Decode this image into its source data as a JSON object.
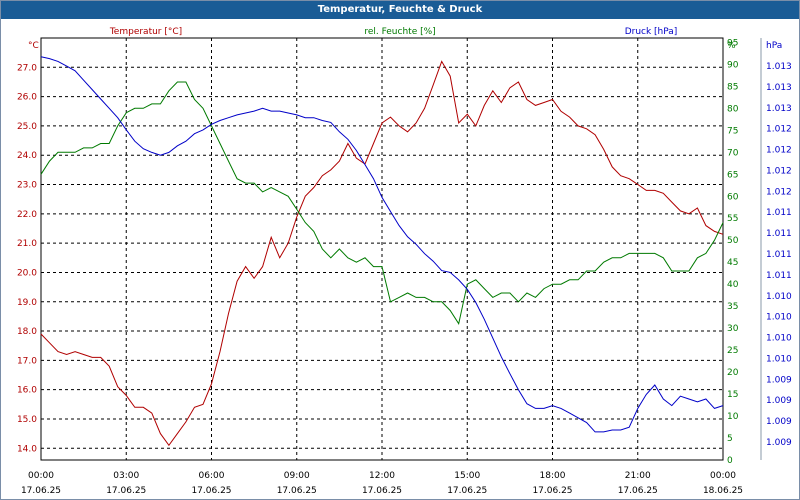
{
  "chart_data": {
    "type": "line",
    "title": "Temperatur, Feuchte & Druck",
    "x_ticks": [
      {
        "time": "00:00",
        "date": "17.06.25"
      },
      {
        "time": "03:00",
        "date": "17.06.25"
      },
      {
        "time": "06:00",
        "date": "17.06.25"
      },
      {
        "time": "09:00",
        "date": "17.06.25"
      },
      {
        "time": "12:00",
        "date": "17.06.25"
      },
      {
        "time": "15:00",
        "date": "17.06.25"
      },
      {
        "time": "18:00",
        "date": "17.06.25"
      },
      {
        "time": "21:00",
        "date": "17.06.25"
      },
      {
        "time": "00:00",
        "date": "18.06.25"
      }
    ],
    "x_range_hours": [
      0,
      24
    ],
    "grid": true,
    "axes": {
      "temperature": {
        "label": "Temperatur [°C]",
        "unit": "°C",
        "range": [
          13.6,
          28.0
        ],
        "ticks": [
          "14.0",
          "15.0",
          "16.0",
          "17.0",
          "18.0",
          "19.0",
          "20.0",
          "21.0",
          "22.0",
          "23.0",
          "24.0",
          "25.0",
          "26.0",
          "27.0"
        ],
        "color": "#b00000"
      },
      "humidity": {
        "label": "rel. Feuchte [%]",
        "unit": "%",
        "range": [
          0,
          96
        ],
        "ticks": [
          "0",
          "5",
          "10",
          "15",
          "20",
          "25",
          "30",
          "35",
          "40",
          "45",
          "50",
          "55",
          "60",
          "65",
          "70",
          "75",
          "80",
          "85",
          "90",
          "95",
          "%"
        ],
        "color": "#007a00"
      },
      "pressure": {
        "label": "Druck [hPa]",
        "unit": "hPa",
        "range": [
          1008.8,
          1013.3
        ],
        "ticks": [
          "1.009",
          "1.009",
          "1.009",
          "1.009",
          "1.010",
          "1.010",
          "1.010",
          "1.010",
          "1.011",
          "1.011",
          "1.011",
          "1.011",
          "1.012",
          "1.012",
          "1.012",
          "1.012",
          "1.013",
          "1.013",
          "1.013"
        ],
        "color": "#0000c8"
      }
    },
    "series": [
      {
        "name": "Temperatur [°C]",
        "color": "#b00000",
        "axis": "temperature",
        "x": [
          0,
          0.3,
          0.6,
          0.9,
          1.2,
          1.5,
          1.8,
          2.1,
          2.4,
          2.7,
          3,
          3.3,
          3.6,
          3.9,
          4.2,
          4.5,
          4.8,
          5.1,
          5.4,
          5.7,
          6,
          6.3,
          6.6,
          6.9,
          7.2,
          7.5,
          7.8,
          8.1,
          8.4,
          8.7,
          9,
          9.3,
          9.6,
          9.9,
          10.2,
          10.5,
          10.8,
          11.1,
          11.4,
          11.7,
          12,
          12.3,
          12.6,
          12.9,
          13.2,
          13.5,
          13.8,
          14.1,
          14.4,
          14.7,
          15,
          15.3,
          15.6,
          15.9,
          16.2,
          16.5,
          16.8,
          17.1,
          17.4,
          17.7,
          18,
          18.3,
          18.6,
          18.9,
          19.2,
          19.5,
          19.8,
          20.1,
          20.4,
          20.7,
          21,
          21.3,
          21.6,
          21.9,
          22.2,
          22.5,
          22.8,
          23.1,
          23.4,
          23.7,
          24
        ],
        "values": [
          17.9,
          17.6,
          17.3,
          17.2,
          17.3,
          17.2,
          17.1,
          17.1,
          16.8,
          16.1,
          15.8,
          15.4,
          15.4,
          15.2,
          14.5,
          14.1,
          14.5,
          14.9,
          15.4,
          15.5,
          16.2,
          17.3,
          18.6,
          19.7,
          20.2,
          19.8,
          20.2,
          21.2,
          20.5,
          21.0,
          21.9,
          22.6,
          22.9,
          23.3,
          23.5,
          23.8,
          24.4,
          23.9,
          23.7,
          24.4,
          25.1,
          25.3,
          25.0,
          24.8,
          25.1,
          25.6,
          26.4,
          27.2,
          26.7,
          25.1,
          25.4,
          25.0,
          25.7,
          26.2,
          25.8,
          26.3,
          26.5,
          25.9,
          25.7,
          25.8,
          25.9,
          25.5,
          25.3,
          25.0,
          24.9,
          24.7,
          24.2,
          23.6,
          23.3,
          23.2,
          23.0,
          22.8,
          22.8,
          22.7,
          22.4,
          22.1,
          22.0,
          22.2,
          21.6,
          21.4,
          21.3
        ]
      },
      {
        "name": "rel. Feuchte [%]",
        "color": "#007a00",
        "axis": "humidity",
        "x": [
          0,
          0.3,
          0.6,
          0.9,
          1.2,
          1.5,
          1.8,
          2.1,
          2.4,
          2.7,
          3,
          3.3,
          3.6,
          3.9,
          4.2,
          4.5,
          4.8,
          5.1,
          5.4,
          5.7,
          6,
          6.3,
          6.6,
          6.9,
          7.2,
          7.5,
          7.8,
          8.1,
          8.4,
          8.7,
          9,
          9.3,
          9.6,
          9.9,
          10.2,
          10.5,
          10.8,
          11.1,
          11.4,
          11.7,
          12,
          12.3,
          12.6,
          12.9,
          13.2,
          13.5,
          13.8,
          14.1,
          14.4,
          14.7,
          15,
          15.3,
          15.6,
          15.9,
          16.2,
          16.5,
          16.8,
          17.1,
          17.4,
          17.7,
          18,
          18.3,
          18.6,
          18.9,
          19.2,
          19.5,
          19.8,
          20.1,
          20.4,
          20.7,
          21,
          21.3,
          21.6,
          21.9,
          22.2,
          22.5,
          22.8,
          23.1,
          23.4,
          23.7,
          24
        ],
        "values": [
          65,
          68,
          70,
          70,
          70,
          71,
          71,
          72,
          72,
          76,
          79,
          80,
          80,
          81,
          81,
          84,
          86,
          86,
          82,
          80,
          76,
          72,
          68,
          64,
          63,
          63,
          61,
          62,
          61,
          60,
          57,
          54,
          52,
          48,
          46,
          48,
          46,
          45,
          46,
          44,
          44,
          36,
          37,
          38,
          37,
          37,
          36,
          36,
          34,
          31,
          40,
          41,
          39,
          37,
          38,
          38,
          36,
          38,
          37,
          39,
          40,
          40,
          41,
          41,
          43,
          43,
          45,
          46,
          46,
          47,
          47,
          47,
          47,
          46,
          43,
          43,
          43,
          46,
          47,
          50,
          54
        ]
      },
      {
        "name": "Druck [hPa]",
        "color": "#0000c8",
        "axis": "pressure",
        "x": [
          0,
          0.3,
          0.6,
          0.9,
          1.2,
          1.5,
          1.8,
          2.1,
          2.4,
          2.7,
          3,
          3.3,
          3.6,
          3.9,
          4.2,
          4.5,
          4.8,
          5.1,
          5.4,
          5.7,
          6,
          6.3,
          6.6,
          6.9,
          7.2,
          7.5,
          7.8,
          8.1,
          8.4,
          8.7,
          9,
          9.3,
          9.6,
          9.9,
          10.2,
          10.5,
          10.8,
          11.1,
          11.4,
          11.7,
          12,
          12.3,
          12.6,
          12.9,
          13.2,
          13.5,
          13.8,
          14.1,
          14.4,
          14.7,
          15,
          15.3,
          15.6,
          15.9,
          16.2,
          16.5,
          16.8,
          17.1,
          17.4,
          17.7,
          18,
          18.3,
          18.6,
          18.9,
          19.2,
          19.5,
          19.8,
          20.1,
          20.4,
          20.7,
          21,
          21.3,
          21.6,
          21.9,
          22.2,
          22.5,
          22.8,
          23.1,
          23.4,
          23.7,
          24
        ],
        "values": [
          1013.1,
          1013.08,
          1013.05,
          1013.0,
          1012.95,
          1012.85,
          1012.75,
          1012.65,
          1012.55,
          1012.45,
          1012.32,
          1012.2,
          1012.12,
          1012.08,
          1012.05,
          1012.08,
          1012.15,
          1012.2,
          1012.28,
          1012.32,
          1012.38,
          1012.42,
          1012.45,
          1012.48,
          1012.5,
          1012.52,
          1012.55,
          1012.52,
          1012.52,
          1012.5,
          1012.48,
          1012.45,
          1012.45,
          1012.42,
          1012.4,
          1012.3,
          1012.22,
          1012.1,
          1011.95,
          1011.8,
          1011.6,
          1011.45,
          1011.3,
          1011.18,
          1011.1,
          1011.0,
          1010.92,
          1010.82,
          1010.8,
          1010.72,
          1010.62,
          1010.48,
          1010.3,
          1010.1,
          1009.9,
          1009.72,
          1009.55,
          1009.4,
          1009.35,
          1009.35,
          1009.38,
          1009.35,
          1009.3,
          1009.25,
          1009.2,
          1009.1,
          1009.1,
          1009.12,
          1009.12,
          1009.15,
          1009.35,
          1009.5,
          1009.6,
          1009.45,
          1009.38,
          1009.48,
          1009.45,
          1009.42,
          1009.45,
          1009.35,
          1009.38
        ]
      }
    ]
  }
}
